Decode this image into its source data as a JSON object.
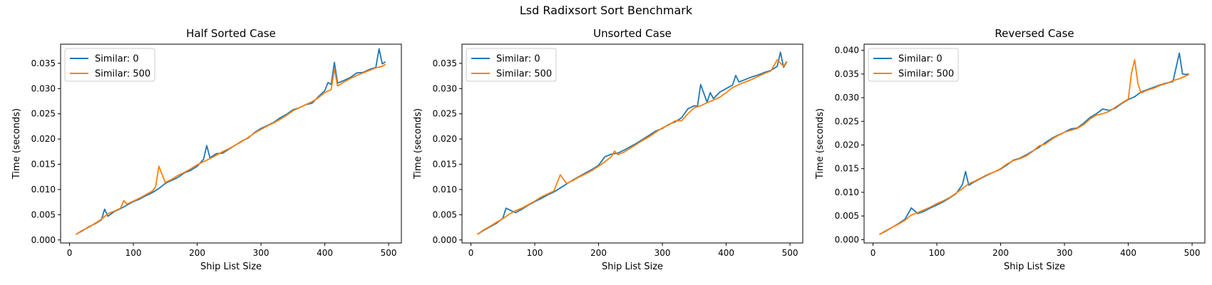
{
  "figure": {
    "suptitle": "Lsd Radixsort Sort Benchmark"
  },
  "style": {
    "series_colors": [
      "#1f77b4",
      "#ff7f0e"
    ],
    "axis_color": "#000000",
    "background": "#ffffff"
  },
  "chart_data": [
    {
      "type": "line",
      "title": "Half Sorted Case",
      "xlabel": "Ship List Size",
      "ylabel": "Time (seconds)",
      "xlim": [
        -14,
        520
      ],
      "ylim": [
        -0.0006,
        0.0388
      ],
      "xticks": [
        0,
        100,
        200,
        300,
        400,
        500
      ],
      "yticks": [
        "0.000",
        "0.005",
        "0.010",
        "0.015",
        "0.020",
        "0.025",
        "0.030",
        "0.035"
      ],
      "legend": {
        "position": "top-left"
      },
      "series": [
        {
          "name": "Similar: 0",
          "x": [
            10,
            20,
            30,
            40,
            50,
            55,
            60,
            70,
            80,
            90,
            100,
            110,
            120,
            130,
            140,
            150,
            160,
            170,
            180,
            190,
            200,
            210,
            215,
            220,
            230,
            240,
            250,
            260,
            270,
            280,
            290,
            300,
            310,
            320,
            330,
            340,
            350,
            360,
            370,
            380,
            390,
            400,
            405,
            410,
            415,
            420,
            430,
            440,
            450,
            460,
            470,
            480,
            485,
            490,
            495
          ],
          "y": [
            0.0011,
            0.0018,
            0.0026,
            0.0032,
            0.004,
            0.0061,
            0.0047,
            0.0056,
            0.0062,
            0.0069,
            0.0076,
            0.0081,
            0.0088,
            0.0094,
            0.0102,
            0.0112,
            0.0118,
            0.0124,
            0.0133,
            0.0138,
            0.0146,
            0.016,
            0.0187,
            0.0163,
            0.0171,
            0.0172,
            0.018,
            0.0188,
            0.0196,
            0.0202,
            0.0213,
            0.0221,
            0.0227,
            0.0233,
            0.0242,
            0.0249,
            0.0258,
            0.0262,
            0.0268,
            0.0271,
            0.0284,
            0.0296,
            0.0312,
            0.0308,
            0.0352,
            0.0311,
            0.0316,
            0.0322,
            0.0331,
            0.0332,
            0.0338,
            0.0342,
            0.0379,
            0.0349,
            0.0353
          ]
        },
        {
          "name": "Similar: 500",
          "x": [
            10,
            20,
            30,
            40,
            50,
            60,
            70,
            80,
            85,
            90,
            100,
            110,
            120,
            130,
            135,
            140,
            150,
            160,
            170,
            180,
            190,
            200,
            210,
            220,
            230,
            240,
            250,
            260,
            270,
            280,
            290,
            300,
            310,
            320,
            330,
            340,
            350,
            360,
            370,
            380,
            390,
            400,
            410,
            415,
            420,
            430,
            440,
            450,
            460,
            470,
            480,
            490,
            495
          ],
          "y": [
            0.0011,
            0.0019,
            0.0025,
            0.0033,
            0.0041,
            0.0052,
            0.0057,
            0.0063,
            0.0078,
            0.0071,
            0.0077,
            0.0083,
            0.009,
            0.0097,
            0.0106,
            0.0146,
            0.0114,
            0.012,
            0.0128,
            0.0134,
            0.0141,
            0.0149,
            0.0155,
            0.0161,
            0.0168,
            0.0175,
            0.0181,
            0.0188,
            0.0195,
            0.0203,
            0.0212,
            0.0219,
            0.0226,
            0.0232,
            0.0239,
            0.0247,
            0.0256,
            0.0262,
            0.0268,
            0.0274,
            0.0282,
            0.0292,
            0.0298,
            0.0339,
            0.0305,
            0.0313,
            0.032,
            0.0326,
            0.0331,
            0.0336,
            0.0341,
            0.0344,
            0.0348
          ]
        }
      ]
    },
    {
      "type": "line",
      "title": "Unsorted Case",
      "xlabel": "Ship List Size",
      "ylabel": "Time (seconds)",
      "xlim": [
        -14,
        520
      ],
      "ylim": [
        -0.0006,
        0.0388
      ],
      "xticks": [
        0,
        100,
        200,
        300,
        400,
        500
      ],
      "yticks": [
        "0.000",
        "0.005",
        "0.010",
        "0.015",
        "0.020",
        "0.025",
        "0.030",
        "0.035"
      ],
      "legend": {
        "position": "top-left"
      },
      "series": [
        {
          "name": "Similar: 0",
          "x": [
            10,
            20,
            30,
            40,
            50,
            55,
            60,
            70,
            80,
            90,
            100,
            110,
            120,
            130,
            140,
            150,
            160,
            170,
            180,
            190,
            200,
            210,
            220,
            230,
            240,
            250,
            260,
            270,
            280,
            290,
            300,
            310,
            320,
            330,
            340,
            350,
            355,
            360,
            370,
            375,
            380,
            390,
            400,
            410,
            415,
            420,
            430,
            440,
            450,
            460,
            470,
            480,
            485,
            490,
            495
          ],
          "y": [
            0.0011,
            0.0019,
            0.0026,
            0.0033,
            0.0043,
            0.0063,
            0.006,
            0.0054,
            0.0061,
            0.0069,
            0.0076,
            0.0082,
            0.0089,
            0.0095,
            0.0103,
            0.0111,
            0.0119,
            0.0126,
            0.0133,
            0.014,
            0.0148,
            0.0165,
            0.017,
            0.0172,
            0.0178,
            0.0185,
            0.0192,
            0.02,
            0.0208,
            0.0216,
            0.0221,
            0.0229,
            0.0234,
            0.0242,
            0.026,
            0.0266,
            0.0265,
            0.0308,
            0.0273,
            0.0292,
            0.028,
            0.0293,
            0.03,
            0.0307,
            0.0326,
            0.0313,
            0.0318,
            0.0323,
            0.0327,
            0.0332,
            0.0336,
            0.0344,
            0.0372,
            0.0342,
            0.0353
          ]
        },
        {
          "name": "Similar: 500",
          "x": [
            10,
            20,
            30,
            40,
            50,
            60,
            70,
            80,
            90,
            100,
            110,
            120,
            130,
            140,
            150,
            160,
            170,
            180,
            190,
            200,
            210,
            220,
            225,
            230,
            240,
            250,
            260,
            270,
            280,
            290,
            300,
            310,
            320,
            330,
            340,
            350,
            360,
            370,
            380,
            390,
            400,
            410,
            420,
            430,
            440,
            450,
            460,
            470,
            480,
            490,
            495
          ],
          "y": [
            0.0011,
            0.002,
            0.0027,
            0.0035,
            0.0042,
            0.0051,
            0.0058,
            0.0063,
            0.007,
            0.0077,
            0.0085,
            0.0091,
            0.0097,
            0.0129,
            0.0112,
            0.0118,
            0.0125,
            0.0131,
            0.0138,
            0.0146,
            0.0155,
            0.0165,
            0.0176,
            0.0169,
            0.0174,
            0.0182,
            0.019,
            0.0198,
            0.0205,
            0.0214,
            0.0222,
            0.0228,
            0.0236,
            0.0236,
            0.025,
            0.0262,
            0.0266,
            0.0272,
            0.0277,
            0.0283,
            0.0292,
            0.0302,
            0.0308,
            0.0313,
            0.0318,
            0.0324,
            0.033,
            0.0335,
            0.0357,
            0.0344,
            0.0354
          ]
        }
      ]
    },
    {
      "type": "line",
      "title": "Reversed Case",
      "xlabel": "Ship List Size",
      "ylabel": "Time (seconds)",
      "xlim": [
        -14,
        520
      ],
      "ylim": [
        -0.0007,
        0.0413
      ],
      "xticks": [
        0,
        100,
        200,
        300,
        400,
        500
      ],
      "yticks": [
        "0.000",
        "0.005",
        "0.010",
        "0.015",
        "0.020",
        "0.025",
        "0.030",
        "0.035",
        "0.040"
      ],
      "legend": {
        "position": "top-left"
      },
      "series": [
        {
          "name": "Similar: 0",
          "x": [
            10,
            20,
            30,
            40,
            50,
            60,
            70,
            80,
            90,
            100,
            110,
            120,
            130,
            140,
            145,
            150,
            160,
            170,
            180,
            190,
            200,
            210,
            220,
            230,
            240,
            250,
            260,
            270,
            280,
            290,
            300,
            310,
            320,
            330,
            340,
            350,
            360,
            370,
            380,
            390,
            400,
            410,
            420,
            430,
            440,
            450,
            460,
            470,
            480,
            485,
            490,
            495
          ],
          "y": [
            0.0011,
            0.0018,
            0.0026,
            0.0034,
            0.0043,
            0.0067,
            0.0055,
            0.006,
            0.0067,
            0.0073,
            0.008,
            0.0088,
            0.0097,
            0.0116,
            0.0144,
            0.0115,
            0.0123,
            0.013,
            0.0137,
            0.0143,
            0.0149,
            0.0158,
            0.0168,
            0.0172,
            0.0179,
            0.0187,
            0.0195,
            0.0205,
            0.0214,
            0.0221,
            0.0227,
            0.0234,
            0.0236,
            0.0246,
            0.0258,
            0.0266,
            0.0276,
            0.0273,
            0.0278,
            0.0288,
            0.0296,
            0.0302,
            0.0312,
            0.0317,
            0.0322,
            0.0327,
            0.0331,
            0.0334,
            0.0394,
            0.035,
            0.0349,
            0.035
          ]
        },
        {
          "name": "Similar: 500",
          "x": [
            10,
            20,
            30,
            40,
            50,
            60,
            70,
            80,
            90,
            100,
            110,
            120,
            130,
            140,
            150,
            160,
            170,
            180,
            190,
            200,
            210,
            220,
            230,
            240,
            250,
            260,
            270,
            280,
            290,
            300,
            310,
            320,
            330,
            340,
            350,
            360,
            370,
            380,
            390,
            400,
            405,
            410,
            415,
            420,
            430,
            440,
            450,
            460,
            470,
            480,
            490,
            495
          ],
          "y": [
            0.0011,
            0.0019,
            0.0026,
            0.0033,
            0.0041,
            0.0052,
            0.0057,
            0.0063,
            0.0069,
            0.0076,
            0.0082,
            0.0089,
            0.0098,
            0.0108,
            0.0118,
            0.0124,
            0.0131,
            0.0138,
            0.0143,
            0.015,
            0.016,
            0.0167,
            0.0171,
            0.0177,
            0.0186,
            0.0198,
            0.0202,
            0.0212,
            0.022,
            0.0227,
            0.0231,
            0.0235,
            0.0243,
            0.0255,
            0.0263,
            0.0266,
            0.0271,
            0.028,
            0.0289,
            0.0297,
            0.0352,
            0.038,
            0.033,
            0.031,
            0.0316,
            0.032,
            0.0326,
            0.033,
            0.0336,
            0.034,
            0.0346,
            0.0349
          ]
        }
      ]
    }
  ]
}
